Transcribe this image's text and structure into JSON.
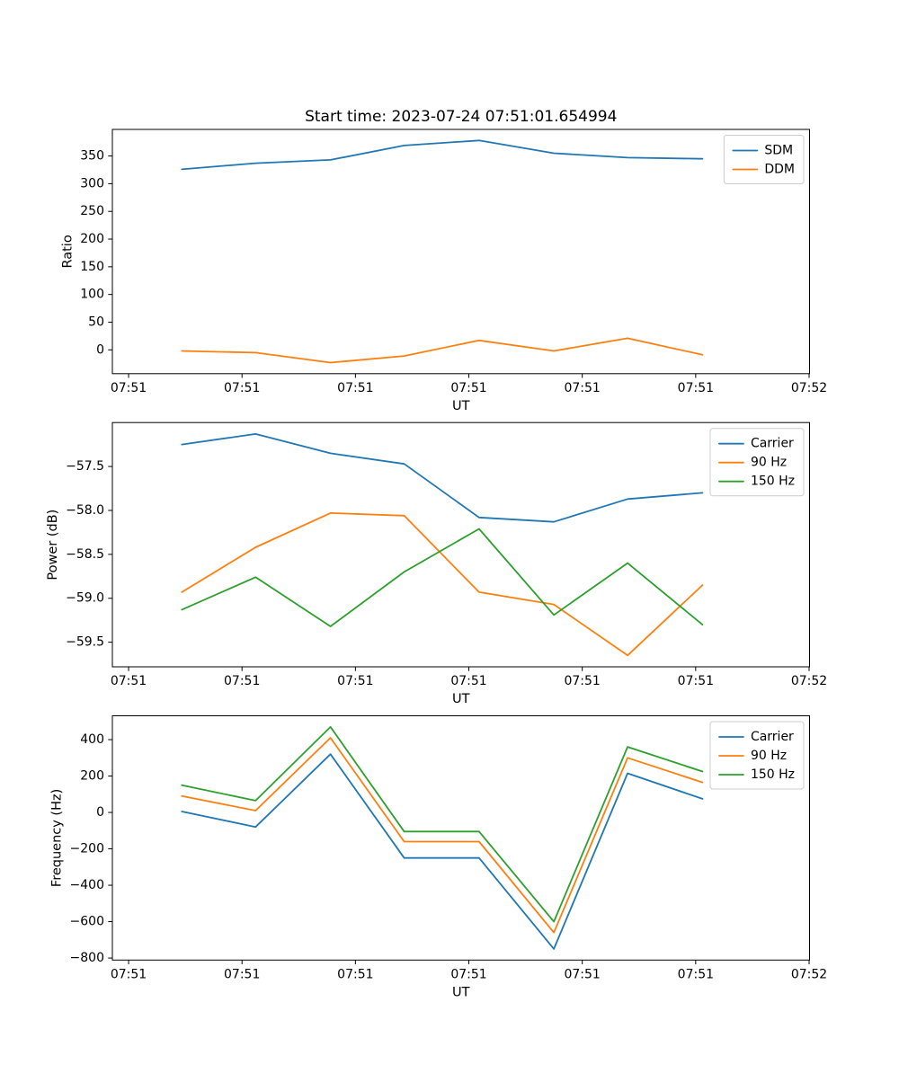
{
  "chart_data": {
    "type": "line",
    "title": "Start time: 2023-07-24 07:51:01.654994",
    "layout_hint": "three stacked subplots sharing identical UT x-axis, legends upper right, no grid",
    "x_axis": {
      "label": "UT",
      "tick_seconds": [
        0,
        10,
        20,
        30,
        40,
        50,
        60
      ],
      "tick_labels": [
        "07:51",
        "07:51",
        "07:51",
        "07:51",
        "07:51",
        "07:51",
        "07:52"
      ],
      "lim_seconds": [
        -1.43,
        60.04
      ],
      "reference_time": "07:51:00"
    },
    "x_seconds": [
      4.7,
      11.2,
      17.8,
      24.3,
      30.9,
      37.5,
      44.0,
      50.6
    ],
    "panels": [
      {
        "name": "ratio",
        "ylabel": "Ratio",
        "xlabel": "UT",
        "ylim": [
          -43,
          398
        ],
        "yticks": [
          0,
          50,
          100,
          150,
          200,
          250,
          300,
          350
        ],
        "ytick_labels": [
          "0",
          "50",
          "100",
          "150",
          "200",
          "250",
          "300",
          "350"
        ],
        "grid": false,
        "legend_location": "upper right",
        "series": [
          {
            "name": "SDM",
            "color": "#1f77b4",
            "values": [
              326,
              337,
              343,
              369,
              378,
              355,
              347,
              345
            ]
          },
          {
            "name": "DDM",
            "color": "#ff7f0e",
            "values": [
              -2,
              -5,
              -23,
              -11,
              17,
              -2,
              21,
              -9
            ]
          }
        ]
      },
      {
        "name": "power",
        "ylabel": "Power (dB)",
        "xlabel": "UT",
        "ylim": [
          -59.78,
          -57.0
        ],
        "yticks": [
          -57.5,
          -58.0,
          -58.5,
          -59.0,
          -59.5
        ],
        "ytick_labels": [
          "−57.5",
          "−58.0",
          "−58.5",
          "−59.0",
          "−59.5"
        ],
        "grid": false,
        "legend_location": "upper right",
        "series": [
          {
            "name": "Carrier",
            "color": "#1f77b4",
            "values": [
              -57.25,
              -57.13,
              -57.35,
              -57.47,
              -58.08,
              -58.13,
              -57.87,
              -57.8
            ]
          },
          {
            "name": "90 Hz",
            "color": "#ff7f0e",
            "values": [
              -58.93,
              -58.42,
              -58.03,
              -58.06,
              -58.93,
              -59.07,
              -59.65,
              -58.85
            ]
          },
          {
            "name": "150 Hz",
            "color": "#2ca02c",
            "values": [
              -59.13,
              -58.76,
              -59.32,
              -58.7,
              -58.21,
              -59.19,
              -58.6,
              -59.3
            ]
          }
        ]
      },
      {
        "name": "frequency",
        "ylabel": "Frequency (Hz)",
        "xlabel": "UT",
        "ylim": [
          -811,
          531
        ],
        "yticks": [
          400,
          200,
          0,
          -200,
          -400,
          -600,
          -800
        ],
        "ytick_labels": [
          "400",
          "200",
          "0",
          "−200",
          "−400",
          "−600",
          "−800"
        ],
        "grid": false,
        "legend_location": "upper right",
        "series": [
          {
            "name": "Carrier",
            "color": "#1f77b4",
            "values": [
              5,
              -80,
              320,
              -250,
              -250,
              -750,
              215,
              75
            ]
          },
          {
            "name": "90 Hz",
            "color": "#ff7f0e",
            "values": [
              90,
              10,
              410,
              -160,
              -160,
              -660,
              300,
              165
            ]
          },
          {
            "name": "150 Hz",
            "color": "#2ca02c",
            "values": [
              150,
              65,
              470,
              -105,
              -105,
              -600,
              360,
              225
            ]
          }
        ]
      }
    ]
  }
}
